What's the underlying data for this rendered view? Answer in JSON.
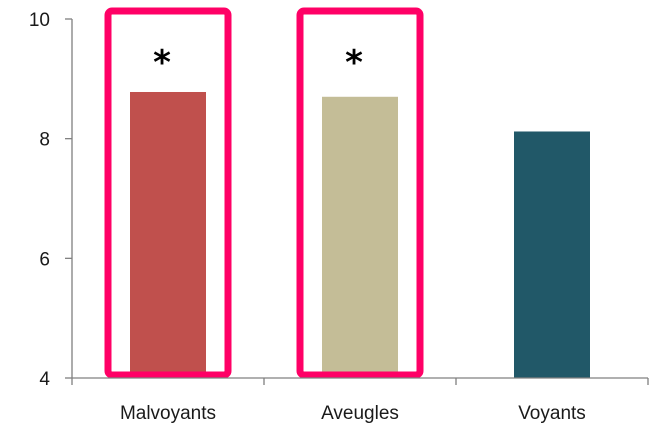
{
  "chart_data": {
    "type": "bar",
    "categories": [
      "Malvoyants",
      "Aveugles",
      "Voyants"
    ],
    "values": [
      8.78,
      8.7,
      8.12
    ],
    "ylim": [
      4,
      10
    ],
    "yticks": [
      4,
      6,
      8,
      10
    ],
    "colors": [
      "#C0504D",
      "#C4BD97",
      "#215868"
    ],
    "highlight_color": "#FF0066",
    "highlighted": [
      true,
      true,
      false
    ],
    "annotations": [
      "*",
      "*",
      ""
    ],
    "grid": false,
    "legend": "none",
    "title": "",
    "xlabel": "",
    "ylabel": ""
  }
}
